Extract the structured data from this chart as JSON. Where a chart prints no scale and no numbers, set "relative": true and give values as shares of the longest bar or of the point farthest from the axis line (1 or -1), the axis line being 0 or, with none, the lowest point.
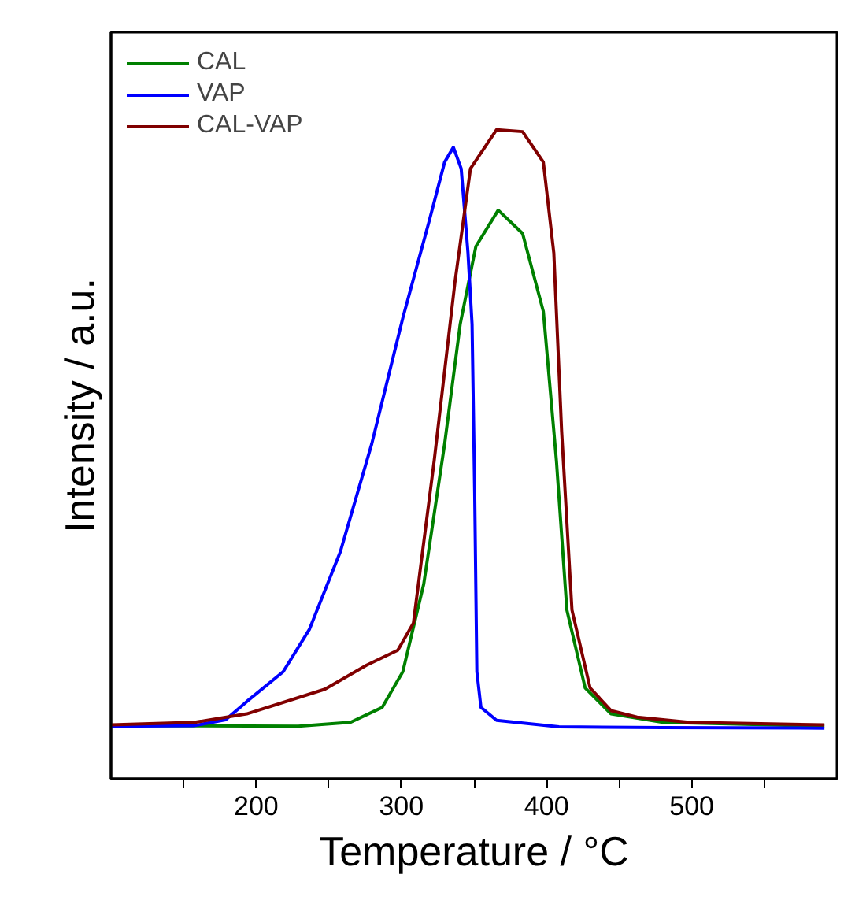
{
  "chart_data": {
    "type": "line",
    "relative": true,
    "xlabel": "Temperature / °C",
    "ylabel": "Intensity / a.u.",
    "xlim": [
      100,
      600
    ],
    "xticks": [
      {
        "value": 150,
        "label": null
      },
      200,
      {
        "value": 250,
        "label": null
      },
      300,
      {
        "value": 350,
        "label": null
      },
      400,
      {
        "value": 450,
        "label": null
      },
      500,
      {
        "value": 550,
        "label": null
      }
    ],
    "legend": "top left",
    "grid": false,
    "tick_labels": "x",
    "marker": "none",
    "line_style": "solid",
    "series": [
      {
        "name": "CAL",
        "color": "#008000",
        "x": [
          100,
          229,
          265,
          286.8,
          301,
          315.4,
          329.8,
          340.5,
          351.3,
          366.7,
          383.5,
          397.8,
          406.8,
          414,
          426.6,
          444.4,
          480,
          591.4
        ],
        "values": [
          0.082,
          0.081,
          0.087,
          0.11,
          0.165,
          0.3,
          0.516,
          0.7,
          0.82,
          0.876,
          0.84,
          0.72,
          0.49,
          0.26,
          0.14,
          0.1,
          0.087,
          0.081
        ]
      },
      {
        "name": "VAP",
        "color": "#0000ff",
        "x": [
          100,
          157.7,
          179,
          193.5,
          218.6,
          236.6,
          258,
          279.6,
          301,
          319,
          329.8,
          335.8,
          341.2,
          345.9,
          348.7,
          350.5,
          352,
          354.8,
          365.6,
          408.6,
          480,
          591.4
        ],
        "values": [
          0.081,
          0.082,
          0.091,
          0.119,
          0.165,
          0.23,
          0.35,
          0.516,
          0.71,
          0.858,
          0.95,
          0.973,
          0.94,
          0.81,
          0.7,
          0.44,
          0.165,
          0.11,
          0.09,
          0.08,
          0.079,
          0.078
        ]
      },
      {
        "name": "CAL-VAP",
        "color": "#800000",
        "x": [
          100,
          157.7,
          193.5,
          247.3,
          276,
          297.5,
          308.3,
          322.6,
          336.9,
          347.6,
          365.6,
          383.5,
          397.8,
          405,
          410.4,
          417.5,
          430,
          444.4,
          462.4,
          498,
          591.4
        ],
        "values": [
          0.083,
          0.087,
          0.1,
          0.138,
          0.175,
          0.198,
          0.24,
          0.49,
          0.765,
          0.94,
          1.0,
          0.997,
          0.95,
          0.81,
          0.535,
          0.26,
          0.14,
          0.105,
          0.095,
          0.087,
          0.083
        ]
      }
    ]
  }
}
